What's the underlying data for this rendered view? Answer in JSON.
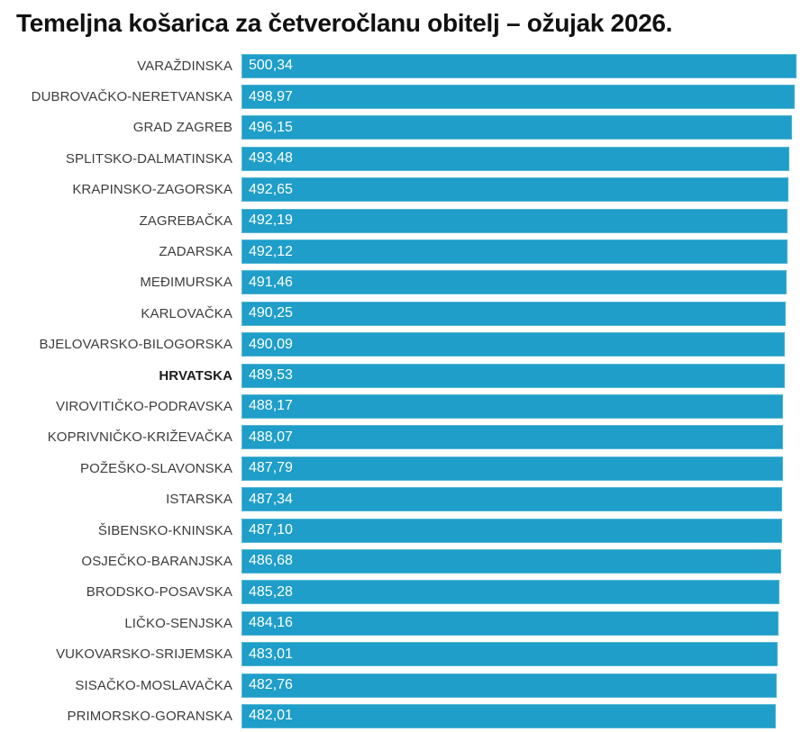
{
  "title": "Temeljna košarica za četveročlanu obitelj – ožujak 2026.",
  "colors": {
    "bar": "#1e9ec8",
    "value_text": "#ffffff",
    "label_text": "#3d3d3d",
    "highlight_label_text": "#1c1c1c",
    "title_text": "#111111",
    "background": "#ffffff"
  },
  "chart_data": {
    "type": "bar",
    "orientation": "horizontal",
    "title": "Temeljna košarica za četveročlanu obitelj – ožujak 2026.",
    "xlabel": "",
    "ylabel": "",
    "xlim": [
      0,
      500.34
    ],
    "grid": false,
    "legend": "none",
    "highlight_category": "HRVATSKA",
    "categories": [
      "VARAŽDINSKA",
      "DUBROVAČKO-NERETVANSKA",
      "GRAD ZAGREB",
      "SPLITSKO-DALMATINSKA",
      "KRAPINSKO-ZAGORSKA",
      "ZAGREBAČKA",
      "ZADARSKA",
      "MEĐIMURSKA",
      "KARLOVAČKA",
      "BJELOVARSKO-BILOGORSKA",
      "HRVATSKA",
      "VIROVITIČKO-PODRAVSKA",
      "KOPRIVNIČKO-KRIŽEVAČKA",
      "POŽEŠKO-SLAVONSKA",
      "ISTARSKA",
      "ŠIBENSKO-KNINSKA",
      "OSJEČKO-BARANJSKA",
      "BRODSKO-POSAVSKA",
      "LIČKO-SENJSKA",
      "VUKOVARSKO-SRIJEMSKA",
      "SISAČKO-MOSLAVAČKA",
      "PRIMORSKO-GORANSKA"
    ],
    "values": [
      500.34,
      498.97,
      496.15,
      493.48,
      492.65,
      492.19,
      492.12,
      491.46,
      490.25,
      490.09,
      489.53,
      488.17,
      488.07,
      487.79,
      487.34,
      487.1,
      486.68,
      485.28,
      484.16,
      483.01,
      482.76,
      482.01
    ],
    "value_labels": [
      "500,34",
      "498,97",
      "496,15",
      "493,48",
      "492,65",
      "492,19",
      "492,12",
      "491,46",
      "490,25",
      "490,09",
      "489,53",
      "488,17",
      "488,07",
      "487,79",
      "487,34",
      "487,10",
      "486,68",
      "485,28",
      "484,16",
      "483,01",
      "482,76",
      "482,01"
    ]
  }
}
